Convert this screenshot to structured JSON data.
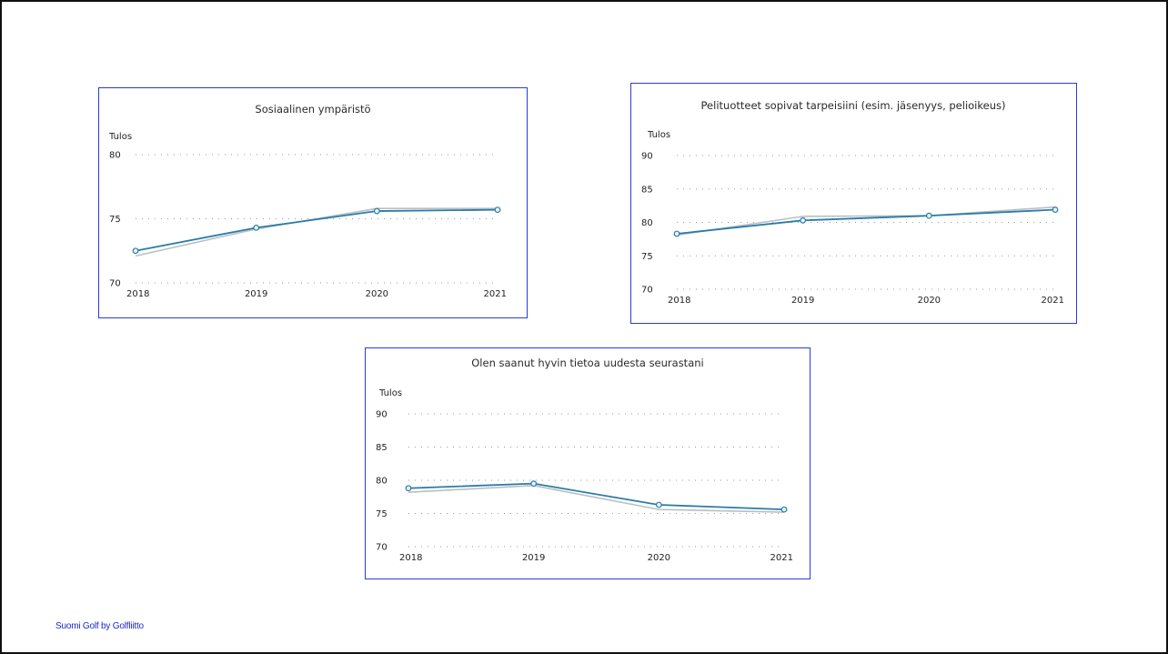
{
  "footer": {
    "text": "Suomi Golf by Golfliitto"
  },
  "colors": {
    "card_border": "#2b3bd6",
    "primary_line": "#2b7ca8",
    "secondary_line": "#b9bfc3",
    "marker_fill": "#e8f4fa",
    "footer_text": "#1c28c9"
  },
  "chart_data": [
    {
      "type": "line",
      "title": "Sosiaalinen ympäristö",
      "ylabel": "Tulos",
      "xlabel": "",
      "x": [
        "2018",
        "2019",
        "2020",
        "2021"
      ],
      "ylim": [
        70,
        80
      ],
      "yticks": [
        70,
        75,
        80
      ],
      "grid": true,
      "series": [
        {
          "values": [
            72.5,
            74.3,
            75.6,
            75.7
          ],
          "style": "primary",
          "markers": true
        },
        {
          "values": [
            72.1,
            74.2,
            75.8,
            75.8
          ],
          "style": "secondary",
          "markers": false
        }
      ]
    },
    {
      "type": "line",
      "title": "Pelituotteet sopivat tarpeisiini (esim. jäsenyys, pelioikeus)",
      "ylabel": "Tulos",
      "xlabel": "",
      "x": [
        "2018",
        "2019",
        "2020",
        "2021"
      ],
      "ylim": [
        70,
        90
      ],
      "yticks": [
        70,
        75,
        80,
        85,
        90
      ],
      "grid": true,
      "series": [
        {
          "values": [
            78.3,
            80.3,
            81.0,
            81.9
          ],
          "style": "primary",
          "markers": true
        },
        {
          "values": [
            78.1,
            80.9,
            81.0,
            82.3
          ],
          "style": "secondary",
          "markers": false
        }
      ]
    },
    {
      "type": "line",
      "title": "Olen saanut hyvin tietoa uudesta seurastani",
      "ylabel": "Tulos",
      "xlabel": "",
      "x": [
        "2018",
        "2019",
        "2020",
        "2021"
      ],
      "ylim": [
        70,
        90
      ],
      "yticks": [
        70,
        75,
        80,
        85,
        90
      ],
      "grid": true,
      "series": [
        {
          "values": [
            78.8,
            79.5,
            76.3,
            75.6
          ],
          "style": "primary",
          "markers": true
        },
        {
          "values": [
            78.2,
            79.2,
            75.6,
            75.2
          ],
          "style": "secondary",
          "markers": false
        }
      ]
    }
  ]
}
